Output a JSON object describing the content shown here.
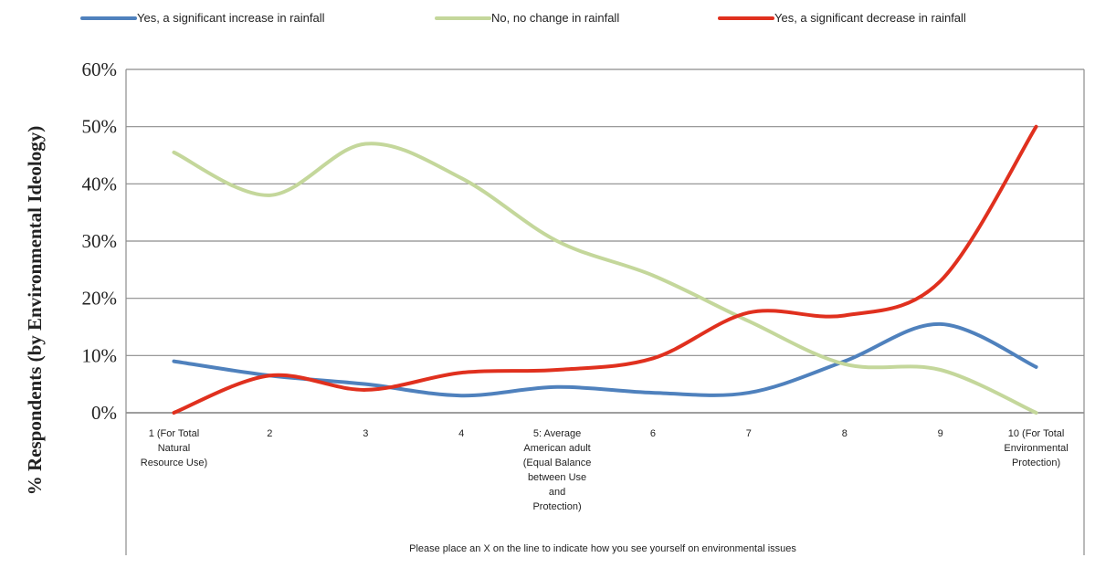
{
  "chart_data": {
    "type": "line",
    "title": "",
    "ylabel": "% Respondents (by Environmental Ideology)",
    "xlabel": "Please place an X on the line to indicate how you see yourself on environmental issues",
    "ylim": [
      0,
      60
    ],
    "yticks": [
      "0%",
      "10%",
      "20%",
      "30%",
      "40%",
      "50%",
      "60%"
    ],
    "grid": true,
    "legend_position": "top",
    "categories": [
      [
        "1 (For Total",
        "Natural",
        "Resource Use)"
      ],
      [
        "2"
      ],
      [
        "3"
      ],
      [
        "4"
      ],
      [
        "5: Average",
        "American adult",
        "(Equal Balance",
        "between Use",
        "and",
        "Protection)"
      ],
      [
        "6"
      ],
      [
        "7"
      ],
      [
        "8"
      ],
      [
        "9"
      ],
      [
        "10 (For Total",
        "Environmental",
        "Protection)"
      ]
    ],
    "series": [
      {
        "name": "Yes, a significant increase in rainfall",
        "color": "#4f81bd",
        "values": [
          9,
          6.5,
          5,
          3,
          4.5,
          3.5,
          3.5,
          9,
          15.5,
          8
        ]
      },
      {
        "name": "No, no change in rainfall",
        "color": "#c4d79b",
        "values": [
          45.5,
          38,
          47,
          41,
          30,
          24,
          16,
          8.5,
          7.5,
          0
        ]
      },
      {
        "name": "Yes, a significant decrease in rainfall",
        "color": "#e0301e",
        "values": [
          0,
          6.5,
          4,
          7,
          7.5,
          9.5,
          17.5,
          17,
          23,
          50
        ]
      }
    ]
  }
}
